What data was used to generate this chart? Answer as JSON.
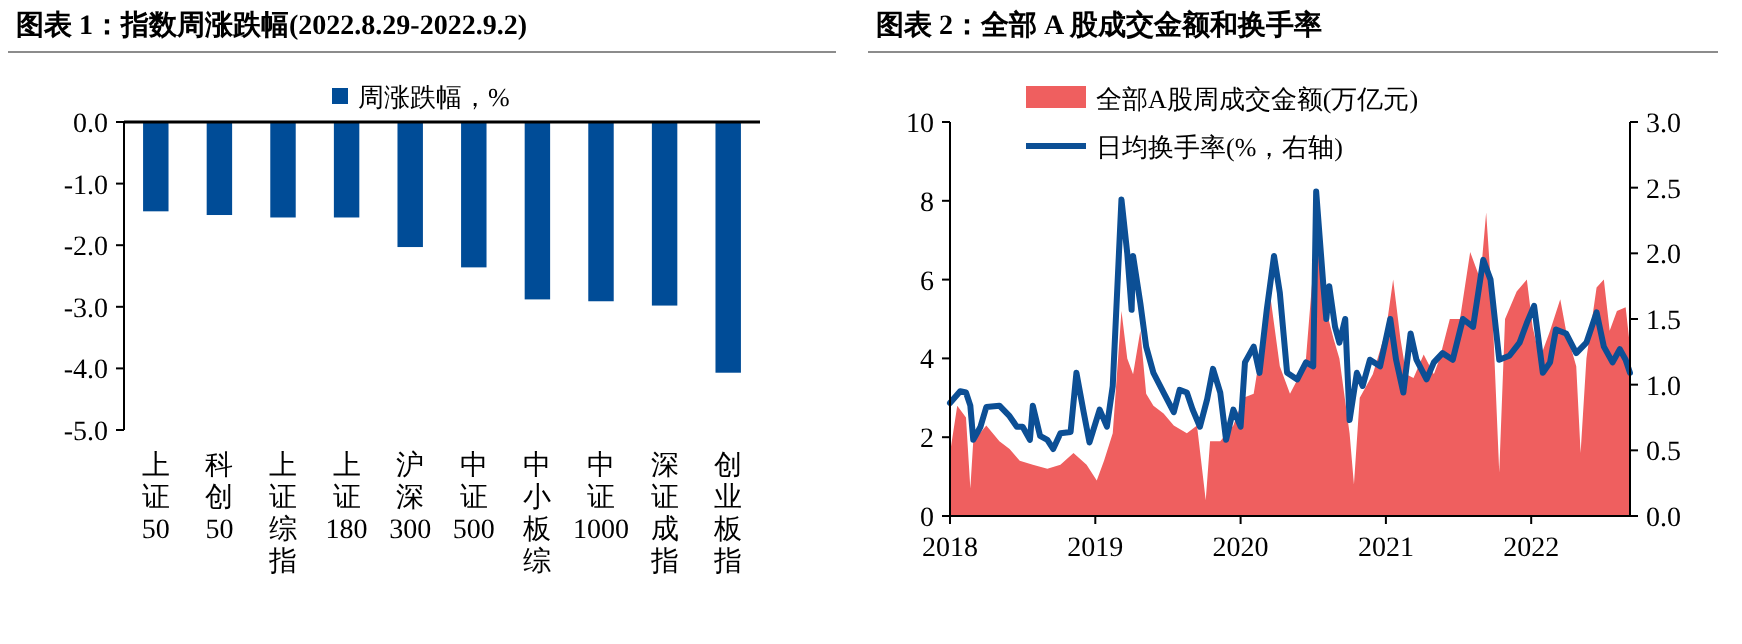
{
  "chart_data": [
    {
      "type": "bar",
      "title": "图表 1：指数周涨跌幅(2022.8.29-2022.9.2)",
      "categories": [
        "上证50",
        "科创50",
        "上证综指",
        "上证180",
        "沪深300",
        "中证500",
        "中小板综",
        "中证1000",
        "深证成指",
        "创业板指"
      ],
      "series": [
        {
          "name": "周涨跌幅，%",
          "color": "#004c97",
          "values": [
            -1.45,
            -1.51,
            -1.55,
            -1.55,
            -2.03,
            -2.36,
            -2.88,
            -2.91,
            -2.98,
            -4.07
          ]
        }
      ],
      "ylim": [
        -5,
        0
      ],
      "yticks": [
        {
          "value": 0,
          "label": "0.0"
        },
        {
          "value": -1,
          "label": "-1.0"
        },
        {
          "value": -2,
          "label": "-2.0"
        },
        {
          "value": -3,
          "label": "-3.0"
        },
        {
          "value": -4,
          "label": "-4.0"
        },
        {
          "value": -5,
          "label": "-5.0"
        }
      ],
      "legend": "top"
    },
    {
      "type": "area",
      "title": "图表 2：全部 A 股成交金额和换手率",
      "series": [
        {
          "name": "全部A股周成交金额(万亿元)",
          "type": "area",
          "color": "#ef5f5f",
          "x": [
            2018.0,
            2018.05,
            2018.11,
            2018.14,
            2018.16,
            2018.25,
            2018.34,
            2018.41,
            2018.48,
            2018.57,
            2018.67,
            2018.76,
            2018.85,
            2018.94,
            2019.01,
            2019.06,
            2019.12,
            2019.18,
            2019.22,
            2019.26,
            2019.31,
            2019.35,
            2019.4,
            2019.47,
            2019.54,
            2019.63,
            2019.7,
            2019.76,
            2019.79,
            2019.86,
            2019.95,
            2020.02,
            2020.09,
            2020.16,
            2020.2,
            2020.27,
            2020.34,
            2020.41,
            2020.45,
            2020.52,
            2020.57,
            2020.64,
            2020.68,
            2020.75,
            2020.78,
            2020.82,
            2020.91,
            2021.0,
            2021.05,
            2021.1,
            2021.14,
            2021.19,
            2021.26,
            2021.33,
            2021.37,
            2021.44,
            2021.51,
            2021.58,
            2021.65,
            2021.69,
            2021.73,
            2021.78,
            2021.82,
            2021.9,
            2021.97,
            2022.01,
            2022.06,
            2022.13,
            2022.2,
            2022.24,
            2022.31,
            2022.34,
            2022.38,
            2022.45,
            2022.5,
            2022.54,
            2022.59,
            2022.65,
            2022.68
          ],
          "values": [
            1.6,
            2.8,
            2.5,
            0.7,
            1.9,
            2.3,
            1.9,
            1.7,
            1.4,
            1.3,
            1.2,
            1.3,
            1.6,
            1.3,
            0.9,
            1.4,
            2.1,
            5.2,
            4.0,
            3.6,
            4.7,
            3.1,
            2.8,
            2.6,
            2.3,
            2.1,
            2.3,
            0.4,
            1.9,
            1.9,
            2.3,
            3.0,
            3.1,
            4.7,
            5.7,
            3.8,
            3.1,
            3.6,
            4.0,
            7.2,
            5.5,
            4.5,
            4.0,
            2.1,
            0.8,
            3.0,
            3.6,
            4.7,
            6.0,
            4.5,
            3.6,
            3.5,
            4.1,
            3.6,
            4.0,
            5.0,
            5.0,
            6.7,
            6.0,
            7.7,
            5.5,
            1.1,
            5.0,
            5.7,
            6.0,
            4.8,
            4.0,
            4.7,
            5.5,
            4.7,
            3.8,
            1.6,
            4.0,
            5.8,
            6.0,
            4.7,
            5.2,
            5.3,
            4.3
          ]
        },
        {
          "name": "日均换手率(%，右轴)",
          "type": "line",
          "axis": "y2",
          "color": "#0c4f95",
          "x": [
            2018.0,
            2018.07,
            2018.11,
            2018.14,
            2018.16,
            2018.21,
            2018.25,
            2018.34,
            2018.41,
            2018.46,
            2018.5,
            2018.55,
            2018.57,
            2018.62,
            2018.67,
            2018.71,
            2018.76,
            2018.83,
            2018.87,
            2018.92,
            2018.96,
            2019.03,
            2019.08,
            2019.12,
            2019.18,
            2019.22,
            2019.25,
            2019.26,
            2019.31,
            2019.35,
            2019.4,
            2019.47,
            2019.54,
            2019.58,
            2019.63,
            2019.67,
            2019.72,
            2019.77,
            2019.81,
            2019.86,
            2019.9,
            2019.95,
            2020.0,
            2020.03,
            2020.09,
            2020.13,
            2020.18,
            2020.23,
            2020.27,
            2020.32,
            2020.39,
            2020.45,
            2020.5,
            2020.52,
            2020.57,
            2020.59,
            2020.61,
            2020.65,
            2020.68,
            2020.72,
            2020.75,
            2020.8,
            2020.84,
            2020.89,
            2020.96,
            2021.03,
            2021.07,
            2021.12,
            2021.17,
            2021.21,
            2021.28,
            2021.33,
            2021.39,
            2021.46,
            2021.53,
            2021.6,
            2021.67,
            2021.72,
            2021.78,
            2021.85,
            2021.92,
            2021.97,
            2022.02,
            2022.08,
            2022.13,
            2022.17,
            2022.24,
            2022.31,
            2022.38,
            2022.45,
            2022.5,
            2022.56,
            2022.61,
            2022.65,
            2022.68
          ],
          "values": [
            0.86,
            0.95,
            0.94,
            0.84,
            0.58,
            0.68,
            0.83,
            0.84,
            0.76,
            0.68,
            0.68,
            0.58,
            0.84,
            0.61,
            0.58,
            0.51,
            0.63,
            0.64,
            1.09,
            0.79,
            0.56,
            0.81,
            0.68,
            0.99,
            2.41,
            2.0,
            1.57,
            1.98,
            1.62,
            1.29,
            1.09,
            0.94,
            0.79,
            0.96,
            0.94,
            0.81,
            0.68,
            0.89,
            1.12,
            0.94,
            0.58,
            0.81,
            0.68,
            1.17,
            1.29,
            1.09,
            1.57,
            1.98,
            1.7,
            1.09,
            1.04,
            1.17,
            1.14,
            2.47,
            1.75,
            1.5,
            1.75,
            1.44,
            1.32,
            1.5,
            0.73,
            1.09,
            0.99,
            1.19,
            1.14,
            1.5,
            1.19,
            0.94,
            1.39,
            1.19,
            1.04,
            1.17,
            1.24,
            1.19,
            1.5,
            1.44,
            1.95,
            1.8,
            1.19,
            1.22,
            1.32,
            1.47,
            1.6,
            1.09,
            1.17,
            1.42,
            1.39,
            1.24,
            1.32,
            1.55,
            1.29,
            1.17,
            1.27,
            1.19,
            1.09
          ]
        }
      ],
      "xlim": [
        2018,
        2022.68
      ],
      "xticks": [
        2018,
        2019,
        2020,
        2021,
        2022
      ],
      "ylim": [
        0,
        10
      ],
      "yticks": [
        0,
        2,
        4,
        6,
        8,
        10
      ],
      "y2lim": [
        0,
        3
      ],
      "y2ticks": [
        {
          "value": 0,
          "label": "0.0"
        },
        {
          "value": 0.5,
          "label": "0.5"
        },
        {
          "value": 1,
          "label": "1.0"
        },
        {
          "value": 1.5,
          "label": "1.5"
        },
        {
          "value": 2,
          "label": "2.0"
        },
        {
          "value": 2.5,
          "label": "2.5"
        },
        {
          "value": 3,
          "label": "3.0"
        }
      ],
      "legend": "top left"
    }
  ]
}
